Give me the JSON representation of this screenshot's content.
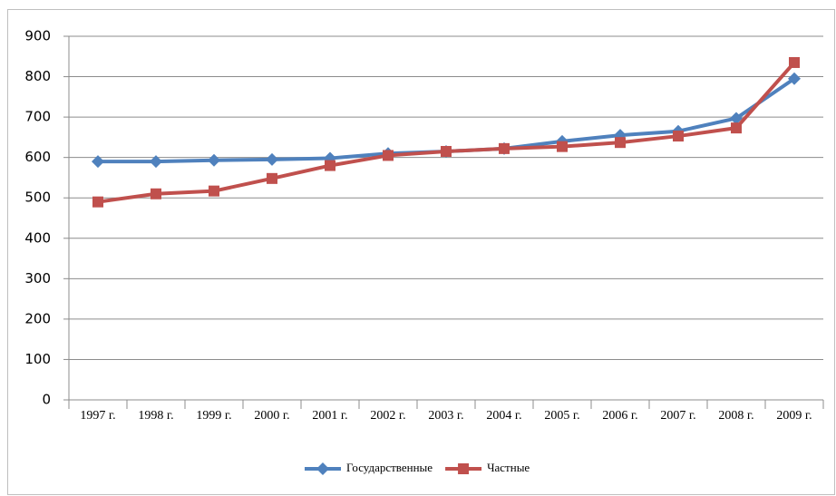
{
  "chart_data": {
    "type": "line",
    "categories": [
      "1997 г.",
      "1998 г.",
      "1999 г.",
      "2000 г.",
      "2001 г.",
      "2002 г.",
      "2003 г.",
      "2004 г.",
      "2005 г.",
      "2006 г.",
      "2007 г.",
      "2008 г.",
      "2009 г."
    ],
    "series": [
      {
        "name": "Государственные",
        "color": "#4f81bd",
        "marker": "diamond",
        "values": [
          590,
          590,
          593,
          595,
          598,
          610,
          615,
          622,
          640,
          655,
          665,
          697,
          795
        ]
      },
      {
        "name": "Частные",
        "color": "#c0504d",
        "marker": "square",
        "values": [
          490,
          510,
          517,
          548,
          580,
          605,
          615,
          622,
          627,
          637,
          653,
          673,
          835
        ]
      }
    ],
    "ylim": [
      0,
      900
    ],
    "yticks": [
      0,
      100,
      200,
      300,
      400,
      500,
      600,
      700,
      800,
      900
    ],
    "grid": true,
    "legend": "bottom"
  }
}
